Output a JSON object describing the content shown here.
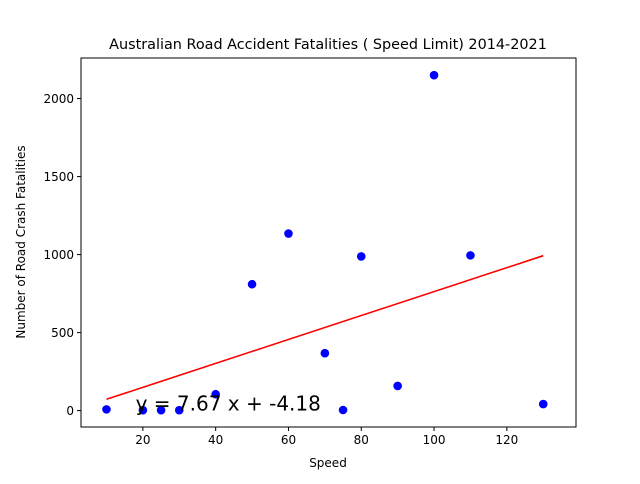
{
  "chart_data": {
    "type": "scatter",
    "title": "Australian Road Accident Fatalities ( Speed Limit) 2014-2021",
    "xlabel": "Speed",
    "ylabel": "Number of Road Crash Fatalities",
    "xlim": [
      3,
      139
    ],
    "ylim": [
      -105,
      2260
    ],
    "xticks": [
      20,
      40,
      60,
      80,
      100,
      120
    ],
    "yticks": [
      0,
      500,
      1000,
      1500,
      2000
    ],
    "grid": false,
    "series": [
      {
        "color": "#0000ff",
        "marker": "circle",
        "x": [
          10,
          20,
          25,
          30,
          40,
          50,
          60,
          70,
          75,
          80,
          90,
          100,
          110,
          130
        ],
        "y": [
          8,
          3,
          3,
          3,
          105,
          810,
          1135,
          368,
          4,
          988,
          158,
          2150,
          995,
          42
        ]
      }
    ],
    "fit_line": {
      "color": "#ff0000",
      "slope": 7.67,
      "intercept": -4.18,
      "x_range": [
        10,
        130
      ]
    },
    "annotation": {
      "text": "y = 7.67 x + -4.18",
      "x": 18,
      "y": 0
    }
  }
}
